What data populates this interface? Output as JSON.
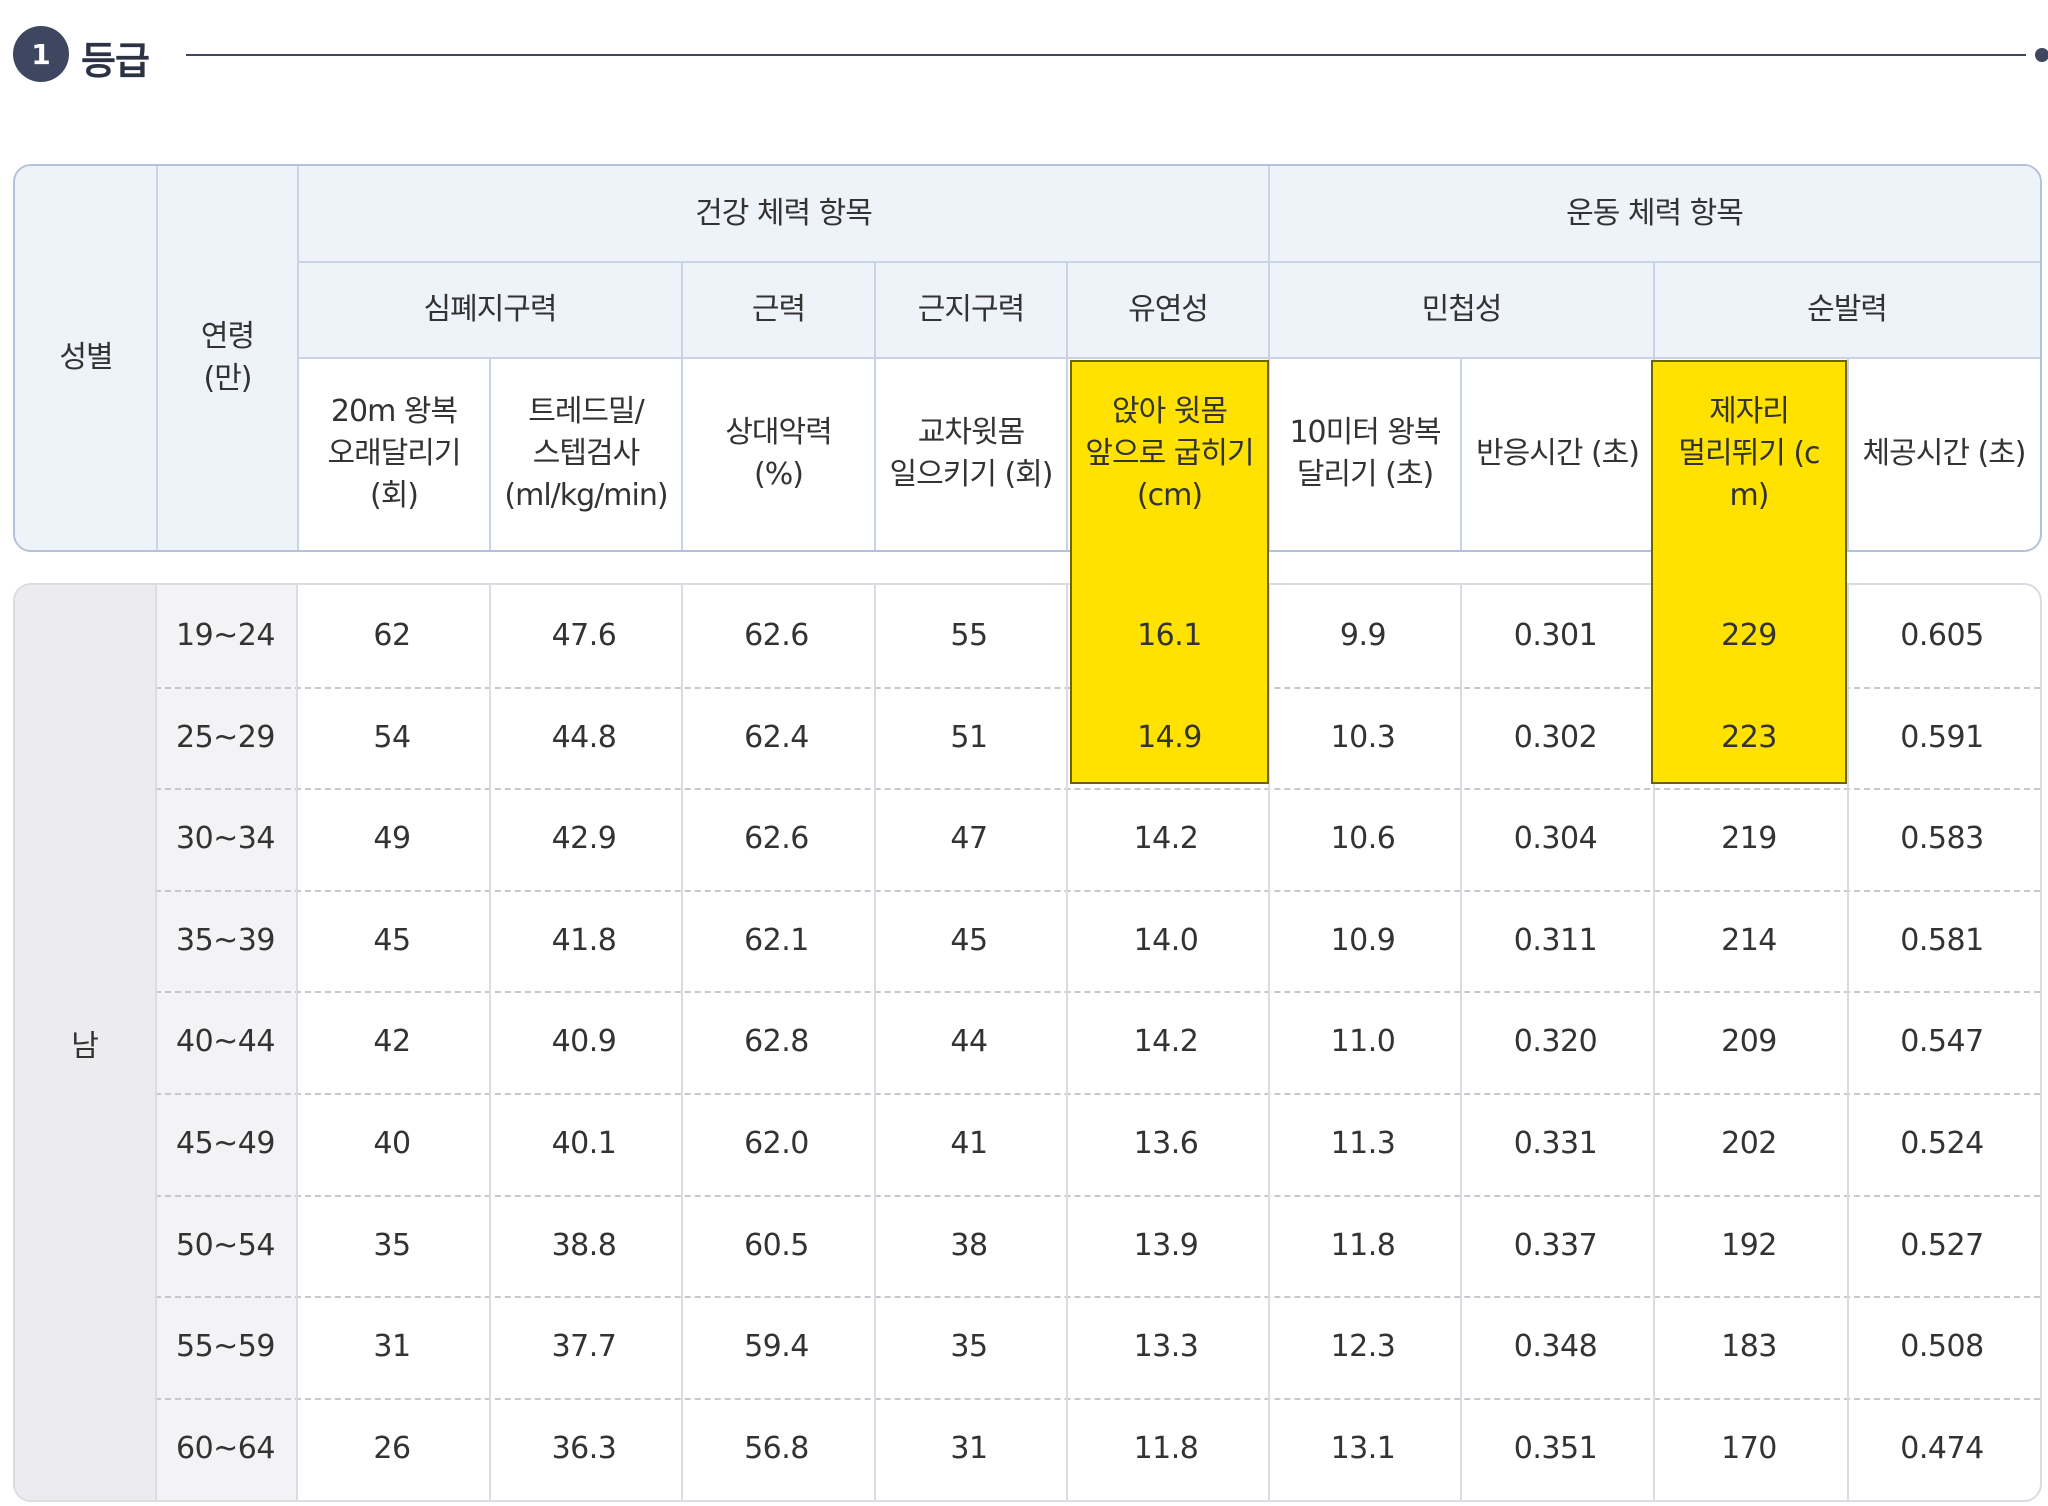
{
  "section": {
    "number": "1",
    "title": "등급"
  },
  "header": {
    "sex": "성별",
    "age": "연령\n(만)",
    "group_health": "건강 체력 항목",
    "group_sport": "운동 체력 항목",
    "cat_cardio": "심폐지구력",
    "cat_strength": "근력",
    "cat_endurance": "근지구력",
    "cat_flex": "유연성",
    "cat_agility": "민첩성",
    "cat_power": "순발력",
    "col_shuttle": "20m 왕복\n오래달리기\n(회)",
    "col_treadmill": "트레드밀/\n스텝검사\n(ml/kg/min)",
    "col_grip": "상대악력\n(%)",
    "col_situp": "교차윗몸\n일으키기 (회)",
    "col_sitreach": "앉아 윗몸\n앞으로 굽히기\n(cm)",
    "col_10m": "10미터 왕복\n달리기 (초)",
    "col_reaction": "반응시간 (초)",
    "col_jump": "제자리\n멀리뛰기 (c\nm)",
    "col_airtime": "체공시간 (초)"
  },
  "sex_label": "남",
  "rows": [
    {
      "age": "19~24",
      "shuttle": "62",
      "treadmill": "47.6",
      "grip": "62.6",
      "situp": "55",
      "sitreach": "16.1",
      "run10": "9.9",
      "reaction": "0.301",
      "jump": "229",
      "airtime": "0.605"
    },
    {
      "age": "25~29",
      "shuttle": "54",
      "treadmill": "44.8",
      "grip": "62.4",
      "situp": "51",
      "sitreach": "14.9",
      "run10": "10.3",
      "reaction": "0.302",
      "jump": "223",
      "airtime": "0.591"
    },
    {
      "age": "30~34",
      "shuttle": "49",
      "treadmill": "42.9",
      "grip": "62.6",
      "situp": "47",
      "sitreach": "14.2",
      "run10": "10.6",
      "reaction": "0.304",
      "jump": "219",
      "airtime": "0.583"
    },
    {
      "age": "35~39",
      "shuttle": "45",
      "treadmill": "41.8",
      "grip": "62.1",
      "situp": "45",
      "sitreach": "14.0",
      "run10": "10.9",
      "reaction": "0.311",
      "jump": "214",
      "airtime": "0.581"
    },
    {
      "age": "40~44",
      "shuttle": "42",
      "treadmill": "40.9",
      "grip": "62.8",
      "situp": "44",
      "sitreach": "14.2",
      "run10": "11.0",
      "reaction": "0.320",
      "jump": "209",
      "airtime": "0.547"
    },
    {
      "age": "45~49",
      "shuttle": "40",
      "treadmill": "40.1",
      "grip": "62.0",
      "situp": "41",
      "sitreach": "13.6",
      "run10": "11.3",
      "reaction": "0.331",
      "jump": "202",
      "airtime": "0.524"
    },
    {
      "age": "50~54",
      "shuttle": "35",
      "treadmill": "38.8",
      "grip": "60.5",
      "situp": "38",
      "sitreach": "13.9",
      "run10": "11.8",
      "reaction": "0.337",
      "jump": "192",
      "airtime": "0.527"
    },
    {
      "age": "55~59",
      "shuttle": "31",
      "treadmill": "37.7",
      "grip": "59.4",
      "situp": "35",
      "sitreach": "13.3",
      "run10": "12.3",
      "reaction": "0.348",
      "jump": "183",
      "airtime": "0.508"
    },
    {
      "age": "60~64",
      "shuttle": "26",
      "treadmill": "36.3",
      "grip": "56.8",
      "situp": "31",
      "sitreach": "11.8",
      "run10": "13.1",
      "reaction": "0.351",
      "jump": "170",
      "airtime": "0.474"
    }
  ],
  "colors": {
    "highlight": "#ffe200",
    "header_bg": "#eef2f9",
    "badge": "#3e4660"
  }
}
